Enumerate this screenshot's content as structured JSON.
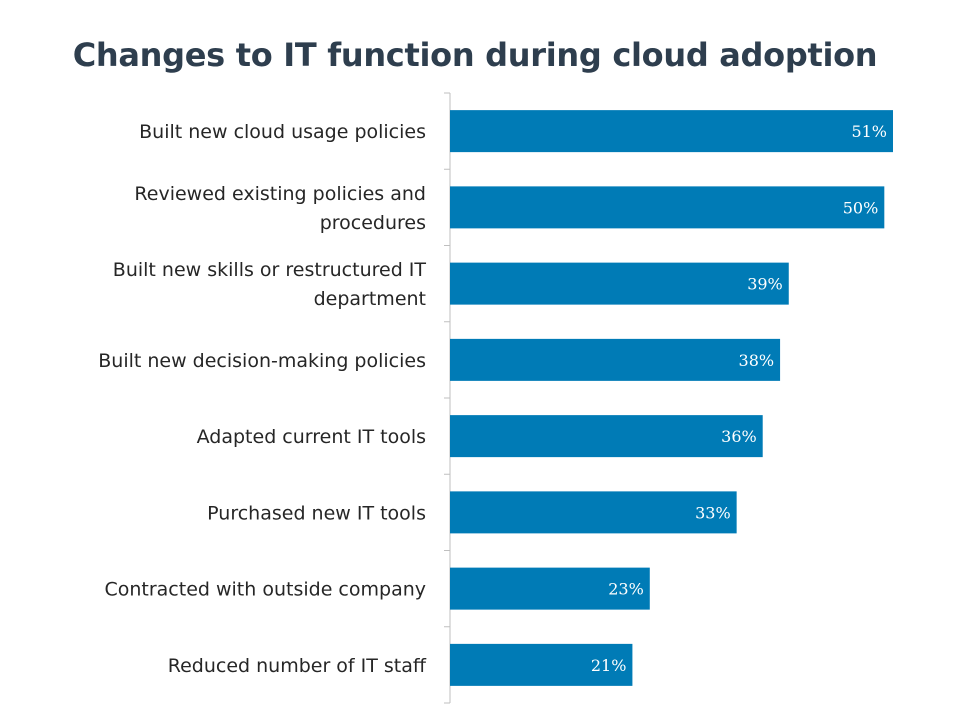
{
  "chart_data": {
    "type": "bar",
    "orientation": "horizontal",
    "title": "Changes to IT function during cloud adoption",
    "categories": [
      "Built new cloud usage policies",
      "Reviewed existing policies and procedures",
      "Built new skills or restructured IT department",
      "Built new decision-making policies",
      "Adapted current IT tools",
      "Purchased new IT tools",
      "Contracted with outside company",
      "Reduced number of IT staff"
    ],
    "category_lines": [
      [
        "Built new cloud usage policies"
      ],
      [
        "Reviewed existing policies and",
        "procedures"
      ],
      [
        "Built new skills or restructured IT",
        "department"
      ],
      [
        "Built new decision-making policies"
      ],
      [
        "Adapted current IT tools"
      ],
      [
        "Purchased new IT tools"
      ],
      [
        "Contracted with outside company"
      ],
      [
        "Reduced number of IT staff"
      ]
    ],
    "values": [
      51,
      50,
      39,
      38,
      36,
      33,
      23,
      21
    ],
    "value_labels": [
      "51%",
      "50%",
      "39%",
      "38%",
      "36%",
      "33%",
      "23%",
      "21%"
    ],
    "xlim": [
      0,
      51
    ],
    "bar_color": "#007bb6",
    "axis_color": "#bfbfbf",
    "grid": false,
    "legend": "none"
  }
}
